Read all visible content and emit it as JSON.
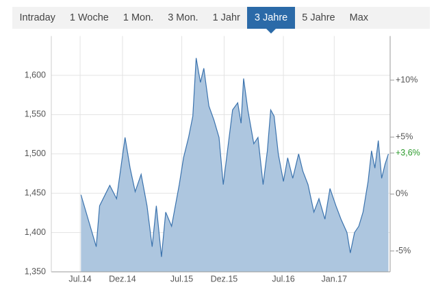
{
  "tabs": [
    "Intraday",
    "1 Woche",
    "1 Mon.",
    "3 Mon.",
    "1 Jahr",
    "3 Jahre",
    "5 Jahre",
    "Max"
  ],
  "active_tab": 5,
  "chart_data": {
    "type": "area",
    "x": [
      0.1,
      1.9,
      2.3,
      3.5,
      4.3,
      5.3,
      5.9,
      6.5,
      7.2,
      7.9,
      8.5,
      9,
      9.6,
      10.1,
      10.8,
      11.7,
      12.2,
      12.8,
      13.3,
      13.7,
      14.2,
      14.6,
      15.2,
      15.8,
      16.4,
      16.9,
      17.5,
      18,
      18.6,
      19,
      19.3,
      19.8,
      20.5,
      21,
      21.6,
      22.1,
      22.5,
      22.9,
      23.4,
      24,
      24.5,
      25.1,
      25.8,
      26.3,
      26.9,
      27.6,
      28.2,
      28.9,
      29.5,
      30.2,
      30.8,
      31.5,
      31.9,
      32.4,
      32.9,
      33.4,
      34,
      34.4,
      34.8,
      35.2,
      35.6,
      36,
      36.4
    ],
    "values": [
      1448,
      1382,
      1434,
      1460,
      1443,
      1521,
      1482,
      1452,
      1474,
      1434,
      1382,
      1434,
      1369,
      1426,
      1408,
      1461,
      1495,
      1521,
      1548,
      1622,
      1591,
      1609,
      1561,
      1543,
      1521,
      1461,
      1513,
      1556,
      1565,
      1539,
      1596,
      1556,
      1513,
      1521,
      1461,
      1504,
      1556,
      1548,
      1500,
      1465,
      1495,
      1469,
      1500,
      1478,
      1461,
      1426,
      1443,
      1417,
      1456,
      1434,
      1417,
      1400,
      1374,
      1400,
      1408,
      1426,
      1465,
      1504,
      1482,
      1517,
      1469,
      1487,
      1500
    ],
    "color": "#3a72ad",
    "fill_color": "#adc6df",
    "xlim": [
      -3.4,
      36.6
    ],
    "xticks": [
      {
        "value": 0,
        "label": "Jul.14"
      },
      {
        "value": 5,
        "label": "Dez.14"
      },
      {
        "value": 12,
        "label": "Jul.15"
      },
      {
        "value": 17,
        "label": "Dez.15"
      },
      {
        "value": 24,
        "label": "Jul.16"
      },
      {
        "value": 30,
        "label": "Jan.17"
      }
    ],
    "ylim": [
      1350,
      1650
    ],
    "yticks": [
      {
        "value": 1350,
        "label": "1,350"
      },
      {
        "value": 1400,
        "label": "1,400"
      },
      {
        "value": 1450,
        "label": "1,450"
      },
      {
        "value": 1500,
        "label": "1,500"
      },
      {
        "value": 1550,
        "label": "1,550"
      },
      {
        "value": 1600,
        "label": "1,600"
      }
    ],
    "y2lim": [
      -6.83,
      13.87
    ],
    "y2ticks": [
      {
        "value": 10,
        "label": "+10%"
      },
      {
        "value": 5,
        "label": "+5%"
      },
      {
        "value": 0,
        "label": "0%"
      },
      {
        "value": -5,
        "label": "-5%"
      }
    ],
    "current_change": {
      "value": 3.6,
      "label": "+3,6%"
    },
    "current_color": "#2a9a2a",
    "grid": true
  }
}
